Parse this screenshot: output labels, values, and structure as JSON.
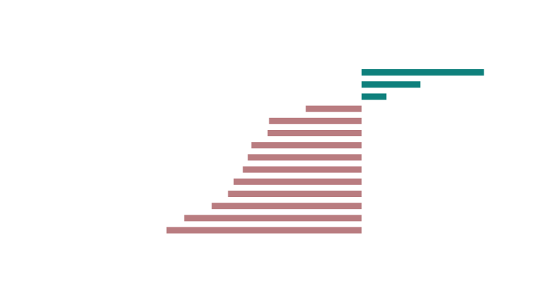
{
  "chart_data": {
    "type": "bar",
    "orientation": "horizontal",
    "title": "",
    "xlabel": "",
    "ylabel": "",
    "grid": false,
    "legend": "none",
    "xlim": [
      -276,
      173
    ],
    "values": [
      173,
      83,
      35,
      -79,
      -131,
      -133,
      -156,
      -161,
      -168,
      -181,
      -189,
      -212,
      -251,
      -276
    ],
    "colors": {
      "positive": "#0e807c",
      "negative": "#b97c80"
    }
  }
}
